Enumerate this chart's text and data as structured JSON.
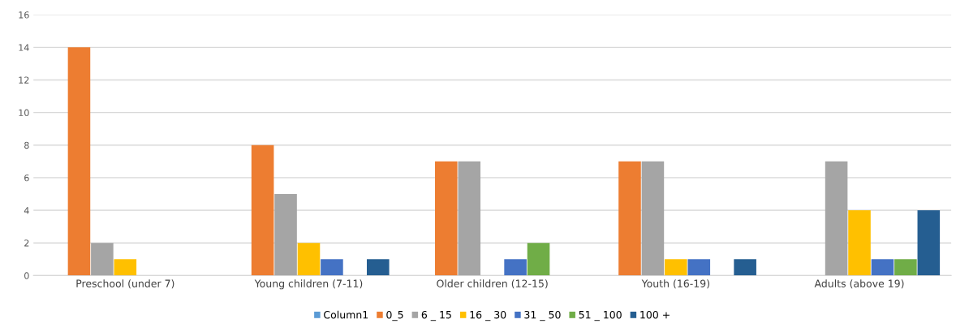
{
  "chart_data": {
    "type": "bar",
    "categories": [
      "Preschool (under 7)",
      "Young children (7-11)",
      "Older children (12-15)",
      "Youth (16-19)",
      "Adults (above 19)"
    ],
    "series": [
      {
        "name": "Column1",
        "color": "#5b9bd5",
        "values": [
          null,
          null,
          null,
          null,
          null
        ]
      },
      {
        "name": "0_5",
        "color": "#ed7d31",
        "values": [
          14,
          8,
          7,
          7,
          null
        ]
      },
      {
        "name": "6 _ 15",
        "color": "#a5a5a5",
        "values": [
          2,
          5,
          7,
          7,
          7
        ]
      },
      {
        "name": "16 _ 30",
        "color": "#ffc000",
        "values": [
          1,
          2,
          null,
          1,
          4
        ]
      },
      {
        "name": "31 _ 50",
        "color": "#4472c4",
        "values": [
          null,
          1,
          1,
          1,
          1
        ]
      },
      {
        "name": "51 _ 100",
        "color": "#70ad47",
        "values": [
          null,
          null,
          2,
          null,
          1
        ]
      },
      {
        "name": "100 +",
        "color": "#255e91",
        "values": [
          null,
          1,
          null,
          1,
          4
        ]
      }
    ],
    "ylim": [
      0,
      16
    ],
    "yticks": [
      0,
      2,
      4,
      6,
      8,
      10,
      12,
      14,
      16
    ],
    "grid": "y",
    "legend": "bottom"
  }
}
